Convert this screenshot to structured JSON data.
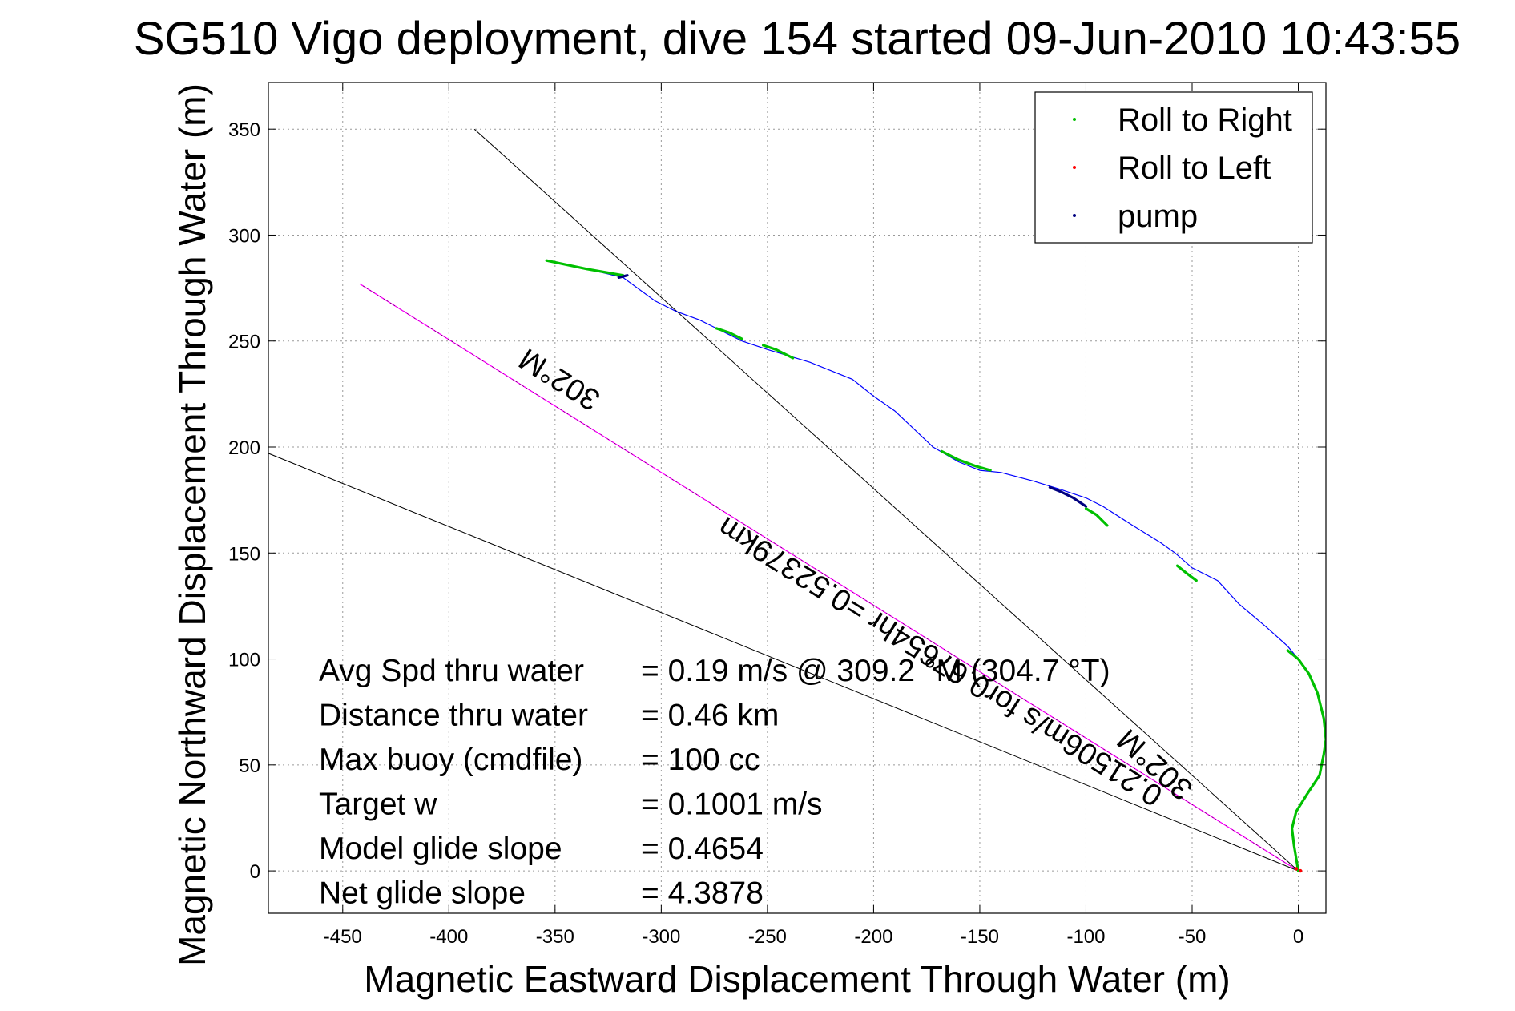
{
  "chart_data": {
    "type": "line",
    "title": "SG510 Vigo deployment, dive 154 started 09-Jun-2010 10:43:55",
    "xlabel": "Magnetic Eastward Displacement Through Water (m)",
    "ylabel": "Magnetic Northward Displacement Through Water (m)",
    "xlim": [
      -485,
      13
    ],
    "ylim": [
      -20,
      372
    ],
    "grid": true,
    "x_ticks": [
      -450,
      -400,
      -350,
      -300,
      -250,
      -200,
      -150,
      -100,
      -50,
      0
    ],
    "y_ticks": [
      0,
      50,
      100,
      150,
      200,
      250,
      300,
      350
    ],
    "legend": {
      "position": "top-right",
      "entries": [
        {
          "label": "Roll to Right",
          "color": "#00c000"
        },
        {
          "label": "Roll to Left",
          "color": "#ff0000"
        },
        {
          "label": "pump",
          "color": "#000080"
        }
      ]
    },
    "colors": {
      "track": "#0000ff",
      "roll_right": "#00c000",
      "roll_left": "#ff0000",
      "pump": "#000080",
      "course": "#ff00ff",
      "heading_lines": "#000000"
    },
    "track": {
      "x": [
        0,
        -1,
        -2,
        -3,
        -1,
        4,
        10,
        12,
        13,
        12,
        9,
        5,
        0,
        -5,
        -15,
        -28,
        -38,
        -50,
        -58,
        -65,
        -78,
        -92,
        -100,
        -112,
        -125,
        -140,
        -150,
        -160,
        -172,
        -190,
        -200,
        -210,
        -230,
        -250,
        -262,
        -270,
        -282,
        -293,
        -303,
        -318,
        -335,
        -354
      ],
      "y": [
        0,
        5,
        12,
        20,
        28,
        36,
        45,
        55,
        62,
        72,
        84,
        93,
        100,
        106,
        115,
        126,
        137,
        143,
        150,
        155,
        163,
        172,
        176,
        180,
        184,
        188,
        189,
        193,
        200,
        217,
        224,
        232,
        240,
        246,
        250,
        254,
        260,
        264,
        269,
        280,
        284,
        288
      ]
    },
    "roll_right_segments": [
      {
        "x": [
          0,
          -2,
          -3,
          -1,
          4,
          10,
          12,
          13,
          12,
          9,
          5,
          0,
          -5
        ],
        "y": [
          0,
          12,
          20,
          28,
          36,
          45,
          55,
          62,
          72,
          84,
          93,
          100,
          104
        ]
      },
      {
        "x": [
          -48,
          -52,
          -57
        ],
        "y": [
          137,
          140,
          144
        ]
      },
      {
        "x": [
          -90,
          -95,
          -100
        ],
        "y": [
          163,
          168,
          171
        ]
      },
      {
        "x": [
          -145,
          -152,
          -160,
          -168
        ],
        "y": [
          189,
          191,
          194,
          198
        ]
      },
      {
        "x": [
          -238,
          -246,
          -252
        ],
        "y": [
          242,
          246,
          248
        ]
      },
      {
        "x": [
          -262,
          -268,
          -274
        ],
        "y": [
          251,
          254,
          256
        ]
      },
      {
        "x": [
          -318,
          -335,
          -354
        ],
        "y": [
          281,
          284,
          288
        ]
      }
    ],
    "roll_left_points": {
      "x": [
        -1,
        1
      ],
      "y": [
        1,
        0
      ]
    },
    "pump_segments": [
      {
        "x": [
          -100,
          -106,
          -112,
          -117
        ],
        "y": [
          172,
          176,
          179,
          181
        ]
      },
      {
        "x": [
          -320,
          -316
        ],
        "y": [
          280,
          281
        ]
      }
    ],
    "course_line": {
      "x": [
        0,
        -442
      ],
      "y": [
        0,
        277
      ],
      "label": "0.21506m/s for0.67654hr =0.52379km"
    },
    "heading_lines": [
      {
        "x": [
          0,
          -388
        ],
        "y": [
          0,
          350
        ],
        "label": "302°M"
      },
      {
        "x": [
          0,
          -485
        ],
        "y": [
          0,
          197
        ],
        "label": "302°M"
      }
    ],
    "stats": [
      {
        "label": "Avg Spd thru water",
        "value": "=  0.19 m/s @ 309.2 °M (304.7 °T)"
      },
      {
        "label": "Distance thru water",
        "value": "=  0.46 km"
      },
      {
        "label": "Max buoy (cmdfile)",
        "value": "= 100 cc"
      },
      {
        "label": "Target w",
        "value": "= 0.1001 m/s"
      },
      {
        "label": "Model glide slope",
        "value": "= 0.4654"
      },
      {
        "label": "Net glide slope",
        "value": "= 4.3878"
      }
    ]
  }
}
